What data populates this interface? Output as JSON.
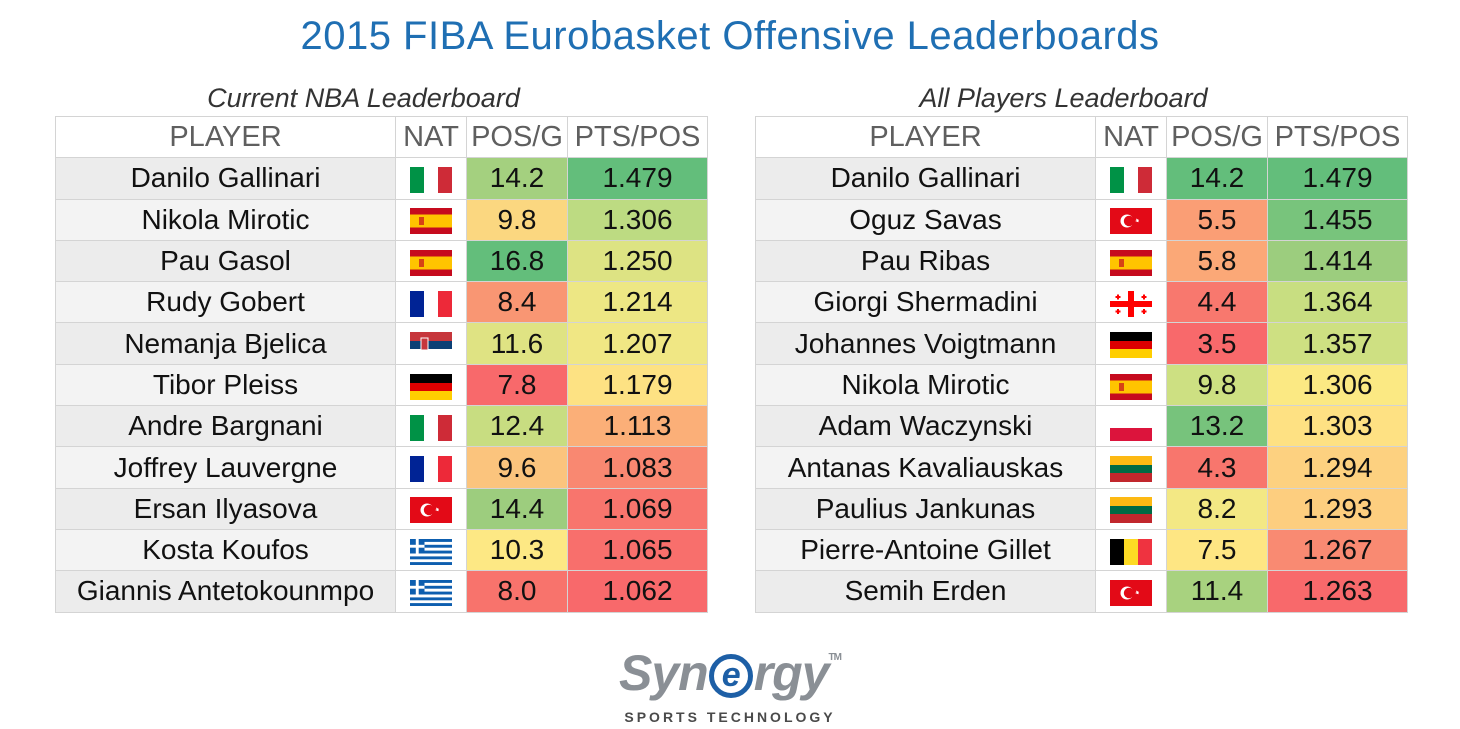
{
  "title": "2015 FIBA Eurobasket Offensive Leaderboards",
  "headers": {
    "player": "PLAYER",
    "nat": "NAT",
    "pos_g": "POS/G",
    "pts_pos": "PTS/POS"
  },
  "colors": {
    "title": "#1f6fb3",
    "scale_green": "#63be7b",
    "scale_yellow": "#f4e784",
    "scale_red": "#f8696b"
  },
  "left": {
    "title": "Current NBA Leaderboard",
    "rows": [
      {
        "player": "Danilo Gallinari",
        "flag": "italy-flag-icon",
        "pos_g": "14.2",
        "pts_pos": "1.479",
        "pos_color": "#a4d07f",
        "pts_color": "#63be7b"
      },
      {
        "player": "Nikola Mirotic",
        "flag": "spain-flag-icon",
        "pos_g": "9.8",
        "pts_pos": "1.306",
        "pos_color": "#fbd780",
        "pts_color": "#bddb82"
      },
      {
        "player": "Pau Gasol",
        "flag": "spain-flag-icon",
        "pos_g": "16.8",
        "pts_pos": "1.250",
        "pos_color": "#63be7b",
        "pts_color": "#dde383"
      },
      {
        "player": "Rudy Gobert",
        "flag": "france-flag-icon",
        "pos_g": "8.4",
        "pts_pos": "1.214",
        "pos_color": "#f99673",
        "pts_color": "#ede784"
      },
      {
        "player": "Nemanja Bjelica",
        "flag": "serbia-flag-icon",
        "pos_g": "11.6",
        "pts_pos": "1.207",
        "pos_color": "#dfe383",
        "pts_color": "#f0e784"
      },
      {
        "player": "Tibor Pleiss",
        "flag": "germany-flag-icon",
        "pos_g": "7.8",
        "pts_pos": "1.179",
        "pos_color": "#f8696b",
        "pts_color": "#fde283"
      },
      {
        "player": "Andre Bargnani",
        "flag": "italy-flag-icon",
        "pos_g": "12.4",
        "pts_pos": "1.113",
        "pos_color": "#c8dd81",
        "pts_color": "#fbaf78"
      },
      {
        "player": "Joffrey Lauvergne",
        "flag": "france-flag-icon",
        "pos_g": "9.6",
        "pts_pos": "1.083",
        "pos_color": "#fbc47d",
        "pts_color": "#f98871"
      },
      {
        "player": "Ersan Ilyasova",
        "flag": "turkey-flag-icon",
        "pos_g": "14.4",
        "pts_pos": "1.069",
        "pos_color": "#9dcd7e",
        "pts_color": "#f8756d"
      },
      {
        "player": "Kosta Koufos",
        "flag": "greece-flag-icon",
        "pos_g": "10.3",
        "pts_pos": "1.065",
        "pos_color": "#fde884",
        "pts_color": "#f86f6c"
      },
      {
        "player": "Giannis Antetokounmpo",
        "flag": "greece-flag-icon",
        "pos_g": "8.0",
        "pts_pos": "1.062",
        "pos_color": "#f8736c",
        "pts_color": "#f8696b"
      }
    ]
  },
  "right": {
    "title": "All Players Leaderboard",
    "rows": [
      {
        "player": "Danilo Gallinari",
        "flag": "italy-flag-icon",
        "pos_g": "14.2",
        "pts_pos": "1.479",
        "pos_color": "#63be7b",
        "pts_color": "#63be7b"
      },
      {
        "player": "Oguz Savas",
        "flag": "turkey-flag-icon",
        "pos_g": "5.5",
        "pts_pos": "1.455",
        "pos_color": "#fa9e75",
        "pts_color": "#78c47c"
      },
      {
        "player": "Pau Ribas",
        "flag": "spain-flag-icon",
        "pos_g": "5.8",
        "pts_pos": "1.414",
        "pos_color": "#fba877",
        "pts_color": "#9ccd7e"
      },
      {
        "player": "Giorgi Shermadini",
        "flag": "georgia-flag-icon",
        "pos_g": "4.4",
        "pts_pos": "1.364",
        "pos_color": "#f8786e",
        "pts_color": "#c8de81"
      },
      {
        "player": "Johannes Voigtmann",
        "flag": "germany-flag-icon",
        "pos_g": "3.5",
        "pts_pos": "1.357",
        "pos_color": "#f8696b",
        "pts_color": "#cee082"
      },
      {
        "player": "Nikola Mirotic",
        "flag": "spain-flag-icon",
        "pos_g": "9.8",
        "pts_pos": "1.306",
        "pos_color": "#cde082",
        "pts_color": "#fbe983"
      },
      {
        "player": "Adam Waczynski",
        "flag": "poland-flag-icon",
        "pos_g": "13.2",
        "pts_pos": "1.303",
        "pos_color": "#77c37c",
        "pts_color": "#fee183"
      },
      {
        "player": "Antanas Kavaliauskas",
        "flag": "lithuania-flag-icon",
        "pos_g": "4.3",
        "pts_pos": "1.294",
        "pos_color": "#f8766d",
        "pts_color": "#fdd180"
      },
      {
        "player": "Paulius Jankunas",
        "flag": "lithuania-flag-icon",
        "pos_g": "8.2",
        "pts_pos": "1.293",
        "pos_color": "#f3e884",
        "pts_color": "#fdce7f"
      },
      {
        "player": "Pierre-Antoine Gillet",
        "flag": "belgium-flag-icon",
        "pos_g": "7.5",
        "pts_pos": "1.267",
        "pos_color": "#fee683",
        "pts_color": "#f98a72"
      },
      {
        "player": "Semih Erden",
        "flag": "turkey-flag-icon",
        "pos_g": "11.4",
        "pts_pos": "1.263",
        "pos_color": "#a8d27f",
        "pts_color": "#f8696b"
      }
    ]
  },
  "logo": {
    "word_pre": "Syn",
    "word_e": "e",
    "word_post": "rgy",
    "tm": "TM",
    "subtitle": "SPORTS TECHNOLOGY"
  }
}
